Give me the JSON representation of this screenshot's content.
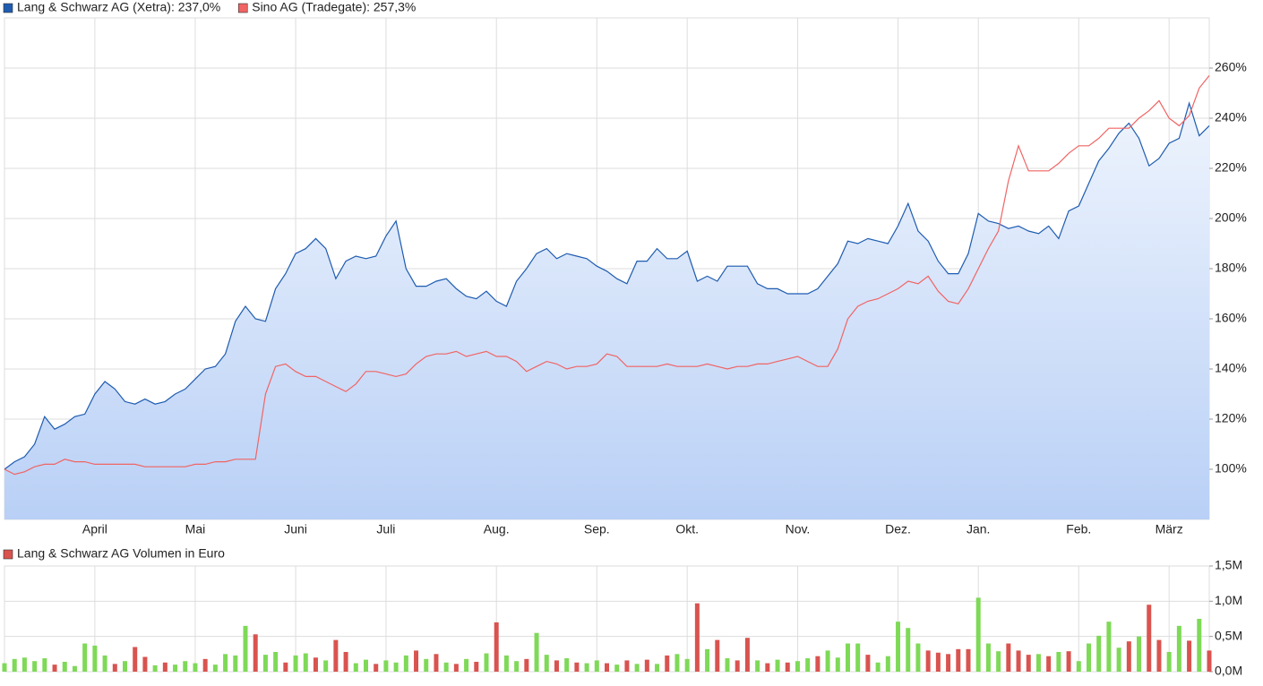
{
  "chart_data": [
    {
      "type": "line",
      "categories": [
        null,
        null,
        null,
        null,
        null,
        null,
        null,
        null,
        null,
        "April",
        null,
        null,
        null,
        null,
        null,
        null,
        null,
        null,
        null,
        "Mai",
        null,
        null,
        null,
        null,
        null,
        null,
        null,
        null,
        null,
        "Juni",
        null,
        null,
        null,
        null,
        null,
        null,
        null,
        null,
        "Juli",
        null,
        null,
        null,
        null,
        null,
        null,
        null,
        null,
        null,
        null,
        "Aug.",
        null,
        null,
        null,
        null,
        null,
        null,
        null,
        null,
        null,
        "Sep.",
        null,
        null,
        null,
        null,
        null,
        null,
        null,
        null,
        "Okt.",
        null,
        null,
        null,
        null,
        null,
        null,
        null,
        null,
        null,
        null,
        "Nov.",
        null,
        null,
        null,
        null,
        null,
        null,
        null,
        null,
        null,
        "Dez.",
        null,
        null,
        null,
        null,
        null,
        null,
        null,
        "Jan.",
        null,
        null,
        null,
        null,
        null,
        null,
        null,
        null,
        null,
        "Feb.",
        null,
        null,
        null,
        null,
        null,
        null,
        null,
        null,
        "März",
        null,
        null,
        null,
        null
      ],
      "series": [
        {
          "name": "Lang & Schwarz AG (Xetra): 237,0%",
          "color": "#1f5cb0",
          "area": true,
          "values": [
            100,
            103,
            105,
            110,
            121,
            116,
            118,
            121,
            122,
            130,
            135,
            132,
            127,
            126,
            128,
            126,
            127,
            130,
            132,
            136,
            140,
            141,
            146,
            159,
            165,
            160,
            159,
            172,
            178,
            186,
            188,
            192,
            188,
            176,
            183,
            185,
            184,
            185,
            193,
            199,
            180,
            173,
            173,
            175,
            176,
            172,
            169,
            168,
            171,
            167,
            165,
            175,
            180,
            186,
            188,
            184,
            186,
            185,
            184,
            181,
            179,
            176,
            174,
            183,
            183,
            188,
            184,
            184,
            187,
            175,
            177,
            175,
            181,
            181,
            181,
            174,
            172,
            172,
            170,
            170,
            170,
            172,
            177,
            182,
            191,
            190,
            192,
            191,
            190,
            197,
            206,
            195,
            191,
            183,
            178,
            178,
            186,
            202,
            199,
            198,
            196,
            197,
            195,
            194,
            197,
            192,
            203,
            205,
            214,
            223,
            228,
            234,
            238,
            232,
            221,
            224,
            230,
            232,
            246,
            233,
            237
          ]
        },
        {
          "name": "Sino AG (Tradegate): 257,3%",
          "color": "#f06464",
          "area": false,
          "values": [
            100,
            98,
            99,
            101,
            102,
            102,
            104,
            103,
            103,
            102,
            102,
            102,
            102,
            102,
            101,
            101,
            101,
            101,
            101,
            102,
            102,
            103,
            103,
            104,
            104,
            104,
            130,
            141,
            142,
            139,
            137,
            137,
            135,
            133,
            131,
            134,
            139,
            139,
            138,
            137,
            138,
            142,
            145,
            146,
            146,
            147,
            145,
            146,
            147,
            145,
            145,
            143,
            139,
            141,
            143,
            142,
            140,
            141,
            141,
            142,
            146,
            145,
            141,
            141,
            141,
            141,
            142,
            141,
            141,
            141,
            142,
            141,
            140,
            141,
            141,
            142,
            142,
            143,
            144,
            145,
            143,
            141,
            141,
            148,
            160,
            165,
            167,
            168,
            170,
            172,
            175,
            174,
            177,
            171,
            167,
            166,
            172,
            180,
            188,
            195,
            215,
            229,
            219,
            219,
            219,
            222,
            226,
            229,
            229,
            232,
            236,
            236,
            236,
            240,
            243,
            247,
            240,
            237,
            241,
            252,
            257
          ]
        }
      ],
      "ylim": [
        80,
        280
      ],
      "yticks": [
        {
          "value": 100,
          "label": "100%"
        },
        {
          "value": 120,
          "label": "120%"
        },
        {
          "value": 140,
          "label": "140%"
        },
        {
          "value": 160,
          "label": "160%"
        },
        {
          "value": 180,
          "label": "180%"
        },
        {
          "value": 200,
          "label": "200%"
        },
        {
          "value": 220,
          "label": "220%"
        },
        {
          "value": 240,
          "label": "240%"
        },
        {
          "value": 260,
          "label": "260%"
        }
      ],
      "grid": true
    },
    {
      "type": "bar",
      "series": [
        {
          "name": "Lang & Schwarz AG Volumen in Euro",
          "color": "#d9534f",
          "values": [
            120000,
            180000,
            200000,
            150000,
            190000,
            100000,
            140000,
            80000,
            400000,
            370000,
            230000,
            110000,
            150000,
            350000,
            210000,
            90000,
            130000,
            100000,
            150000,
            120000,
            180000,
            100000,
            250000,
            230000,
            650000,
            530000,
            240000,
            280000,
            130000,
            230000,
            260000,
            200000,
            160000,
            450000,
            280000,
            120000,
            170000,
            110000,
            160000,
            130000,
            230000,
            300000,
            180000,
            250000,
            130000,
            110000,
            180000,
            140000,
            260000,
            700000,
            230000,
            150000,
            180000,
            550000,
            240000,
            160000,
            190000,
            130000,
            120000,
            160000,
            120000,
            100000,
            160000,
            110000,
            170000,
            110000,
            230000,
            250000,
            180000,
            970000,
            320000,
            450000,
            190000,
            160000,
            480000,
            160000,
            120000,
            170000,
            130000,
            150000,
            190000,
            220000,
            300000,
            200000,
            400000,
            400000,
            240000,
            130000,
            220000,
            710000,
            620000,
            400000,
            300000,
            270000,
            250000,
            320000,
            320000,
            1050000,
            400000,
            290000,
            400000,
            300000,
            240000,
            250000,
            220000,
            280000,
            290000,
            150000,
            400000,
            510000,
            710000,
            340000,
            430000,
            500000,
            950000,
            450000,
            280000,
            650000,
            440000,
            750000,
            300000
          ],
          "bar_colors": [
            "#7ed957",
            "#7ed957",
            "#7ed957",
            "#7ed957",
            "#7ed957",
            "#d9534f",
            "#7ed957",
            "#7ed957",
            "#7ed957",
            "#7ed957",
            "#7ed957",
            "#d9534f",
            "#7ed957",
            "#d9534f",
            "#d9534f",
            "#7ed957",
            "#d9534f",
            "#7ed957",
            "#7ed957",
            "#7ed957",
            "#d9534f",
            "#7ed957",
            "#7ed957",
            "#7ed957",
            "#7ed957",
            "#d9534f",
            "#7ed957",
            "#7ed957",
            "#d9534f",
            "#7ed957",
            "#7ed957",
            "#d9534f",
            "#7ed957",
            "#d9534f",
            "#d9534f",
            "#7ed957",
            "#7ed957",
            "#d9534f",
            "#7ed957",
            "#7ed957",
            "#7ed957",
            "#d9534f",
            "#7ed957",
            "#d9534f",
            "#7ed957",
            "#d9534f",
            "#7ed957",
            "#d9534f",
            "#7ed957",
            "#d9534f",
            "#7ed957",
            "#7ed957",
            "#d9534f",
            "#7ed957",
            "#7ed957",
            "#d9534f",
            "#7ed957",
            "#d9534f",
            "#7ed957",
            "#7ed957",
            "#d9534f",
            "#7ed957",
            "#d9534f",
            "#7ed957",
            "#d9534f",
            "#7ed957",
            "#d9534f",
            "#7ed957",
            "#7ed957",
            "#d9534f",
            "#7ed957",
            "#d9534f",
            "#7ed957",
            "#d9534f",
            "#d9534f",
            "#7ed957",
            "#d9534f",
            "#7ed957",
            "#d9534f",
            "#7ed957",
            "#7ed957",
            "#d9534f",
            "#7ed957",
            "#7ed957",
            "#7ed957",
            "#7ed957",
            "#d9534f",
            "#7ed957",
            "#7ed957",
            "#7ed957",
            "#7ed957",
            "#7ed957",
            "#d9534f",
            "#d9534f",
            "#d9534f",
            "#d9534f",
            "#d9534f",
            "#7ed957",
            "#7ed957",
            "#7ed957",
            "#d9534f",
            "#d9534f",
            "#d9534f",
            "#7ed957",
            "#d9534f",
            "#7ed957",
            "#d9534f",
            "#7ed957",
            "#7ed957",
            "#7ed957",
            "#7ed957",
            "#7ed957",
            "#d9534f",
            "#7ed957",
            "#d9534f",
            "#d9534f",
            "#7ed957",
            "#7ed957",
            "#d9534f",
            "#7ed957",
            "#d9534f"
          ]
        }
      ],
      "ylim": [
        0,
        1500000
      ],
      "yticks": [
        {
          "value": 0,
          "label": "0,0M"
        },
        {
          "value": 500000,
          "label": "0,5M"
        },
        {
          "value": 1000000,
          "label": "1,0M"
        },
        {
          "value": 1500000,
          "label": "1,5M"
        }
      ],
      "grid": true
    }
  ]
}
